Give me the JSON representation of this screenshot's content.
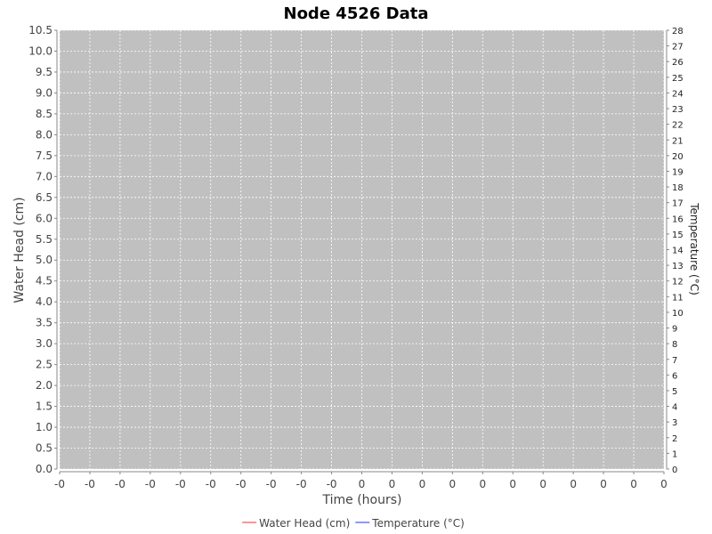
{
  "chart_data": {
    "type": "line",
    "title": "Node 4526 Data",
    "xlabel": "Time (hours)",
    "ylabel": "Water Head (cm)",
    "y2label": "Temperature (°C)",
    "x_tick_labels": [
      "-0",
      "-0",
      "-0",
      "-0",
      "-0",
      "-0",
      "-0",
      "-0",
      "-0",
      "-0",
      "0",
      "0",
      "0",
      "0",
      "0",
      "0",
      "0",
      "0",
      "0",
      "0",
      "0"
    ],
    "ylim": [
      0,
      10.5
    ],
    "y_ticks": [
      "0.0",
      "0.5",
      "1.0",
      "1.5",
      "2.0",
      "2.5",
      "3.0",
      "3.5",
      "4.0",
      "4.5",
      "5.0",
      "5.5",
      "6.0",
      "6.5",
      "7.0",
      "7.5",
      "8.0",
      "8.5",
      "9.0",
      "9.5",
      "10.0",
      "10.5"
    ],
    "y2lim": [
      0,
      28
    ],
    "y2_ticks": [
      "0",
      "1",
      "2",
      "3",
      "4",
      "5",
      "6",
      "7",
      "8",
      "9",
      "10",
      "11",
      "12",
      "13",
      "14",
      "15",
      "16",
      "17",
      "18",
      "19",
      "20",
      "21",
      "22",
      "23",
      "24",
      "25",
      "26",
      "27",
      "28"
    ],
    "grid": true,
    "plot_background": "#c0c0c0",
    "grid_color": "#ffffff",
    "legend_position": "bottom",
    "series": [
      {
        "name": "Water Head (cm)",
        "color": "#ff5555",
        "values": []
      },
      {
        "name": "Temperature (°C)",
        "color": "#5555ff",
        "values": []
      }
    ]
  }
}
